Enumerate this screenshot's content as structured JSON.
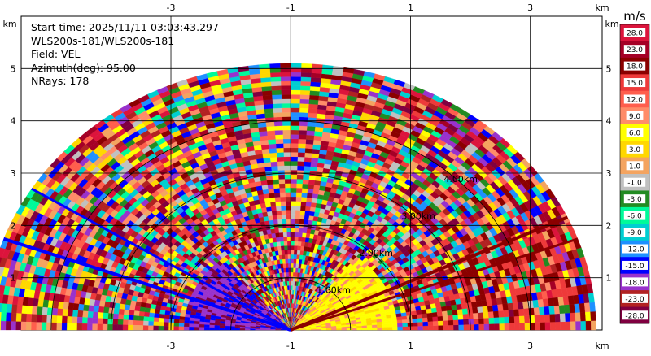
{
  "info": {
    "start_time": "Start time: 2025/11/11 03:03:43.297",
    "instrument": "WLS200s-181/WLS200s-181",
    "field": "Field: VEL",
    "azimuth": "Azimuth(deg): 95.00",
    "nrays": "NRays: 178"
  },
  "chart_data": {
    "type": "heatmap",
    "projection": "rhi-polar",
    "x_ticks": [
      "-3",
      "-1",
      "1",
      "3"
    ],
    "x_tick_values": [
      -3,
      -1,
      1,
      3
    ],
    "y_ticks": [
      "1",
      "2",
      "3",
      "4",
      "5"
    ],
    "y_tick_values": [
      1,
      2,
      3,
      4,
      5
    ],
    "axis_unit": "km",
    "xlim": [
      -5.5,
      4.2
    ],
    "ylim": [
      0,
      6
    ],
    "origin_km": [
      -1.0,
      0
    ],
    "max_range_km": 5.1,
    "range_rings": [
      {
        "label": "1.00km",
        "radius": 1.0
      },
      {
        "label": "2.00km",
        "radius": 2.0
      },
      {
        "label": "3.00km",
        "radius": 3.0
      },
      {
        "label": "4.00km",
        "radius": 4.0
      }
    ],
    "grid": true,
    "colorbar": {
      "unit": "m/s",
      "labels": [
        "28.0",
        "23.0",
        "18.0",
        "15.0",
        "12.0",
        "9.0",
        "6.0",
        "3.0",
        "1.0",
        "-1.0",
        "-3.0",
        "-6.0",
        "-9.0",
        "-12.0",
        "-15.0",
        "-18.0",
        "-23.0",
        "-28.0"
      ],
      "colors": [
        "#dc143c",
        "#a50026",
        "#8b0000",
        "#ee3a3a",
        "#ff5e4d",
        "#ff8c69",
        "#ffff00",
        "#ffd700",
        "#f4a460",
        "#c0c0c0",
        "#228b22",
        "#00fa9a",
        "#00ced1",
        "#1e90ff",
        "#0000ff",
        "#9932cc",
        "#b22222",
        "#800040"
      ]
    }
  }
}
